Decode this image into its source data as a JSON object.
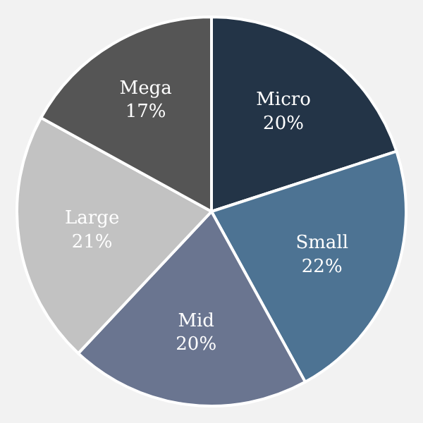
{
  "chart_data": {
    "type": "pie",
    "categories": [
      "Micro",
      "Small",
      "Mid",
      "Large",
      "Mega"
    ],
    "values": [
      20,
      22,
      20,
      21,
      17
    ],
    "value_labels": [
      "20%",
      "22%",
      "20%",
      "21%",
      "17%"
    ],
    "colors": [
      "#233447",
      "#4d7393",
      "#6a7590",
      "#c2c2c2",
      "#555555"
    ],
    "legend": false
  }
}
